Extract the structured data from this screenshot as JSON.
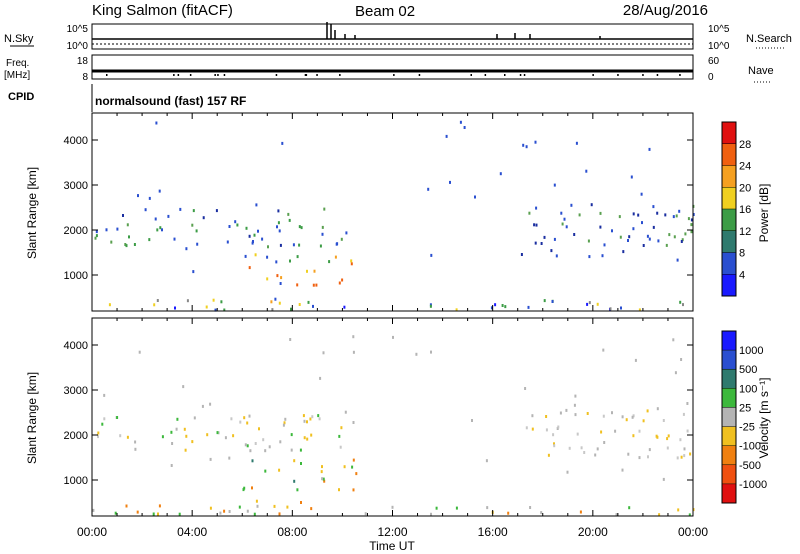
{
  "header": {
    "station": "King Salmon (fitACF)",
    "beam": "Beam 02",
    "date": "28/Aug/2016"
  },
  "strips": {
    "nsky_label": "N.Sky",
    "nsky_ticks": [
      "10^5",
      "10^0"
    ],
    "nsearch_label": "N.Search",
    "nsearch_ticks": [
      "10^5",
      "10^0"
    ],
    "freq_label": "Freq.",
    "freq_unit": "[MHz]",
    "freq_ticks": [
      "18",
      "8"
    ],
    "nave_label": "Nave",
    "nave_ticks": [
      "60",
      "0"
    ],
    "cpid_label": "CPID",
    "cpid_text": "normalsound (fast) 157 RF"
  },
  "chart_data": [
    {
      "type": "heatmap",
      "name": "power-panel",
      "xlabel": "",
      "ylabel": "Slant Range [km]",
      "ylim": [
        200,
        4600
      ],
      "yticks": [
        1000,
        2000,
        3000,
        4000
      ],
      "xlim": [
        0,
        24
      ],
      "colorbar": {
        "label": "Power [dB]",
        "ticks": [
          "4",
          "8",
          "12",
          "16",
          "20",
          "24",
          "28"
        ],
        "colors": [
          "#1a1aff",
          "#2a4fd0",
          "#2f7a6e",
          "#3c9c46",
          "#f0d020",
          "#f5a020",
          "#f06010",
          "#e01010"
        ]
      },
      "regions": [
        {
          "t0": 0.1,
          "t1": 10.3,
          "r0": 1650,
          "r1": 2500,
          "colors": [
            "#2a4fd0",
            "#1a2ea0",
            "#3c9c46",
            "#5aa050"
          ]
        },
        {
          "t0": 6.0,
          "t1": 10.6,
          "r0": 800,
          "r1": 1500,
          "colors": [
            "#3c9c46",
            "#f0d020",
            "#f5a020",
            "#f06010",
            "#2a4fd0"
          ]
        },
        {
          "t0": 6.5,
          "t1": 8.5,
          "r0": 350,
          "r1": 600,
          "colors": [
            "#f0d020",
            "#f5a020",
            "#2a4fd0"
          ]
        },
        {
          "t0": 17.0,
          "t1": 24.0,
          "r0": 1450,
          "r1": 2600,
          "colors": [
            "#2a4fd0",
            "#1a2ea0",
            "#5aa050"
          ]
        },
        {
          "t0": 0.0,
          "t1": 24.0,
          "r0": 240,
          "r1": 480,
          "colors": [
            "#2a4fd0",
            "#3c9c46",
            "#f0d020",
            "#1a1aff",
            "#888888"
          ]
        }
      ]
    },
    {
      "type": "heatmap",
      "name": "velocity-panel",
      "xlabel": "Time UT",
      "ylabel": "Slant Range [km]",
      "ylim": [
        200,
        4600
      ],
      "yticks": [
        1000,
        2000,
        3000,
        4000
      ],
      "xlim": [
        0,
        24
      ],
      "xticks": [
        "00:00",
        "04:00",
        "08:00",
        "12:00",
        "16:00",
        "20:00",
        "00:00"
      ],
      "colorbar": {
        "label": "Velocity [m s⁻¹]",
        "ticks": [
          "1000",
          "500",
          "100",
          "25",
          "-25",
          "-100",
          "-500",
          "-1000"
        ],
        "colors": [
          "#1a1aff",
          "#2a4fd0",
          "#2f7a6e",
          "#3cb83c",
          "#b4b4b4",
          "#f0c020",
          "#f08010",
          "#f05010",
          "#e01010"
        ]
      },
      "regions": [
        {
          "t0": 0.1,
          "t1": 10.3,
          "r0": 1650,
          "r1": 2500,
          "colors": [
            "#b4b4b4",
            "#c8c8c8",
            "#f0c020",
            "#3cb83c"
          ]
        },
        {
          "t0": 6.0,
          "t1": 10.6,
          "r0": 800,
          "r1": 1500,
          "colors": [
            "#3cb83c",
            "#2f7a6e",
            "#f0c020",
            "#f08010"
          ]
        },
        {
          "t0": 6.5,
          "t1": 8.5,
          "r0": 350,
          "r1": 600,
          "colors": [
            "#f0c020",
            "#f08010"
          ]
        },
        {
          "t0": 17.0,
          "t1": 24.0,
          "r0": 1450,
          "r1": 2600,
          "colors": [
            "#b4b4b4",
            "#c8c8c8",
            "#f0c020"
          ]
        },
        {
          "t0": 0.0,
          "t1": 24.0,
          "r0": 240,
          "r1": 480,
          "colors": [
            "#3cb83c",
            "#f0c020",
            "#b4b4b4",
            "#f08010"
          ]
        }
      ]
    }
  ]
}
